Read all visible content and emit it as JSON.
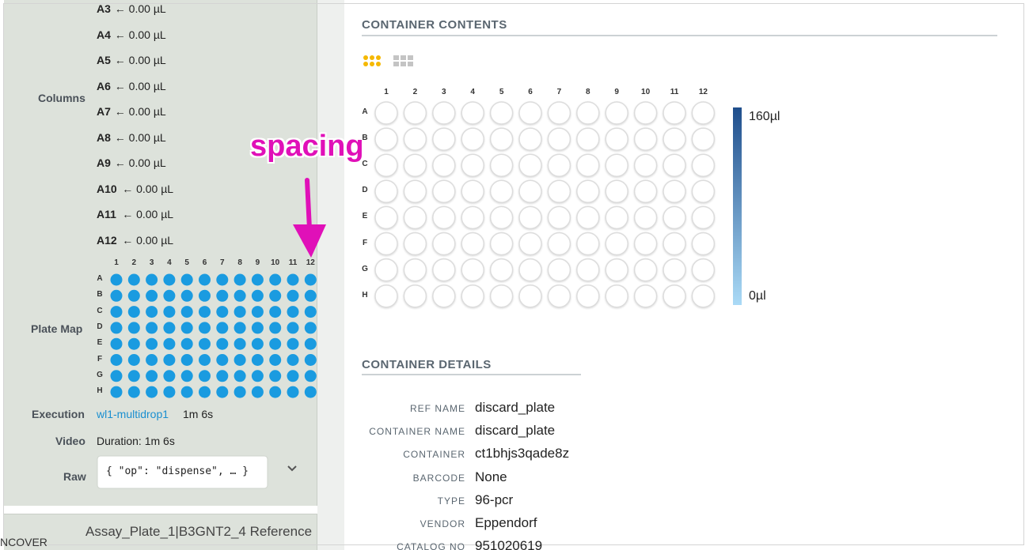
{
  "sidebar": {
    "columns_label": "Columns",
    "column_entries": [
      {
        "well": "A3",
        "amount": "← 0.00 µL"
      },
      {
        "well": "A4",
        "amount": "← 0.00 µL"
      },
      {
        "well": "A5",
        "amount": "← 0.00 µL"
      },
      {
        "well": "A6",
        "amount": "← 0.00 µL"
      },
      {
        "well": "A7",
        "amount": "← 0.00 µL"
      },
      {
        "well": "A8",
        "amount": "← 0.00 µL"
      },
      {
        "well": "A9",
        "amount": "← 0.00 µL"
      },
      {
        "well": "A10",
        "amount": "← 0.00 µL"
      },
      {
        "well": "A11",
        "amount": "← 0.00 µL"
      },
      {
        "well": "A12",
        "amount": "← 0.00 µL"
      }
    ],
    "plate_map": {
      "label": "Plate Map",
      "columns": [
        1,
        2,
        3,
        4,
        5,
        6,
        7,
        8,
        9,
        10,
        11,
        12
      ],
      "rows": [
        "A",
        "B",
        "C",
        "D",
        "E",
        "F",
        "G",
        "H"
      ],
      "well_color": "#1a9be0"
    },
    "execution": {
      "label": "Execution",
      "link": "wl1-multidrop1",
      "duration": "1m 6s"
    },
    "video": {
      "label": "Video",
      "text": "Duration: 1m 6s"
    },
    "raw": {
      "label": "Raw",
      "text": "{ \"op\": \"dispense\", … }"
    },
    "next_item": {
      "label_fragment": "NCOVER",
      "title": "Assay_Plate_1|B3GNT2_4 Reference"
    }
  },
  "annotation": "spacing",
  "container_contents": {
    "title": "CONTAINER CONTENTS",
    "columns": [
      1,
      2,
      3,
      4,
      5,
      6,
      7,
      8,
      9,
      10,
      11,
      12
    ],
    "rows": [
      "A",
      "B",
      "C",
      "D",
      "E",
      "F",
      "G",
      "H"
    ],
    "scale_max": "160µl",
    "scale_min": "0µl"
  },
  "container_details": {
    "title": "CONTAINER DETAILS",
    "rows": [
      {
        "key": "REF NAME",
        "value": "discard_plate",
        "link": false
      },
      {
        "key": "CONTAINER NAME",
        "value": "discard_plate",
        "link": false
      },
      {
        "key": "CONTAINER",
        "value": "ct1bhjs3qade8z",
        "link": true
      },
      {
        "key": "BARCODE",
        "value": "None",
        "link": false
      },
      {
        "key": "TYPE",
        "value": "96-pcr",
        "link": true
      },
      {
        "key": "VENDOR",
        "value": "Eppendorf",
        "link": false
      },
      {
        "key": "CATALOG NO",
        "value": "951020619",
        "link": false
      }
    ]
  }
}
